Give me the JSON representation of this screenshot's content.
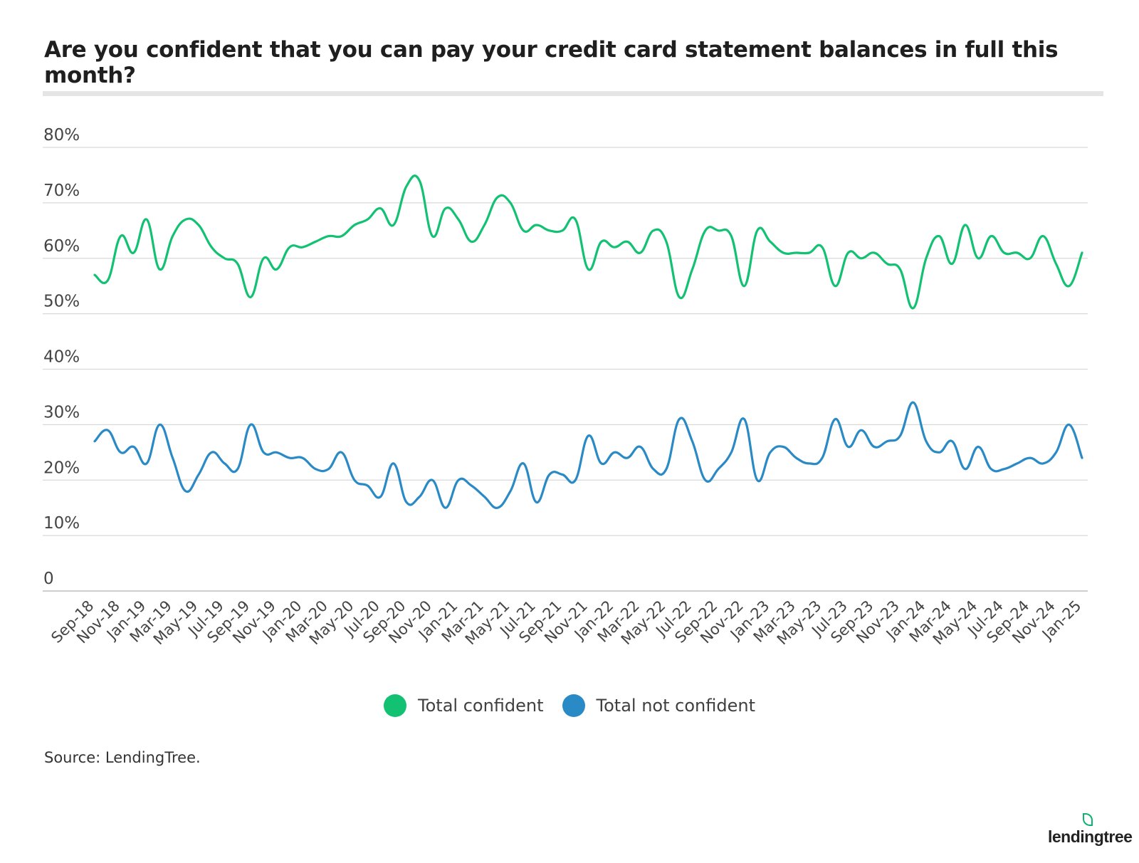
{
  "chart_data": {
    "type": "line",
    "title": "Are you confident that you can pay your credit card statement balances in full this month?",
    "x": [
      "Sep-18",
      "Oct-18",
      "Nov-18",
      "Dec-18",
      "Jan-19",
      "Feb-19",
      "Mar-19",
      "Apr-19",
      "May-19",
      "Jun-19",
      "Jul-19",
      "Aug-19",
      "Sep-19",
      "Oct-19",
      "Nov-19",
      "Dec-19",
      "Jan-20",
      "Feb-20",
      "Mar-20",
      "Apr-20",
      "May-20",
      "Jun-20",
      "Jul-20",
      "Aug-20",
      "Sep-20",
      "Oct-20",
      "Nov-20",
      "Dec-20",
      "Jan-21",
      "Feb-21",
      "Mar-21",
      "Apr-21",
      "May-21",
      "Jun-21",
      "Jul-21",
      "Aug-21",
      "Sep-21",
      "Oct-21",
      "Nov-21",
      "Dec-21",
      "Jan-22",
      "Feb-22",
      "Mar-22",
      "Apr-22",
      "May-22",
      "Jun-22",
      "Jul-22",
      "Aug-22",
      "Sep-22",
      "Oct-22",
      "Nov-22",
      "Dec-22",
      "Jan-23",
      "Feb-23",
      "Mar-23",
      "Apr-23",
      "May-23",
      "Jun-23",
      "Jul-23",
      "Aug-23",
      "Sep-23",
      "Oct-23",
      "Nov-23",
      "Dec-23",
      "Jan-24",
      "Feb-24",
      "Mar-24",
      "Apr-24",
      "May-24",
      "Jun-24",
      "Jul-24",
      "Aug-24",
      "Sep-24",
      "Oct-24",
      "Nov-24",
      "Dec-24",
      "Jan-25"
    ],
    "x_tick_labels": [
      "Sep-18",
      "Nov-18",
      "Jan-19",
      "Mar-19",
      "May-19",
      "Jul-19",
      "Sep-19",
      "Nov-19",
      "Jan-20",
      "Mar-20",
      "May-20",
      "Jul-20",
      "Sep-20",
      "Nov-20",
      "Jan-21",
      "Mar-21",
      "May-21",
      "Jul-21",
      "Sep-21",
      "Nov-21",
      "Jan-22",
      "Mar-22",
      "May-22",
      "Jul-22",
      "Sep-22",
      "Nov-22",
      "Jan-23",
      "Mar-23",
      "May-23",
      "Jul-23",
      "Sep-23",
      "Nov-23",
      "Jan-24",
      "Mar-24",
      "May-24",
      "Jul-24",
      "Sep-24",
      "Nov-24",
      "Jan-25"
    ],
    "series": [
      {
        "name": "Total confident",
        "color": "#12c172",
        "values": [
          57,
          56,
          64,
          61,
          67,
          58,
          64,
          67,
          66,
          62,
          60,
          59,
          53,
          60,
          58,
          62,
          62,
          63,
          64,
          64,
          66,
          67,
          69,
          66,
          73,
          74,
          64,
          69,
          67,
          63,
          66,
          71,
          70,
          65,
          66,
          65,
          65,
          67,
          58,
          63,
          62,
          63,
          61,
          65,
          63,
          53,
          58,
          65,
          65,
          64,
          55,
          65,
          63,
          61,
          61,
          61,
          62,
          55,
          61,
          60,
          61,
          59,
          58,
          51,
          60,
          64,
          59,
          66,
          60,
          64,
          61,
          61,
          60,
          64,
          59,
          55,
          61
        ]
      },
      {
        "name": "Total not confident",
        "color": "#2a8ac6",
        "values": [
          27,
          29,
          25,
          26,
          23,
          30,
          24,
          18,
          21,
          25,
          23,
          22,
          30,
          25,
          25,
          24,
          24,
          22,
          22,
          25,
          20,
          19,
          17,
          23,
          16,
          17,
          20,
          15,
          20,
          19,
          17,
          15,
          18,
          23,
          16,
          21,
          21,
          20,
          28,
          23,
          25,
          24,
          26,
          22,
          22,
          31,
          27,
          20,
          22,
          25,
          31,
          20,
          25,
          26,
          24,
          23,
          24,
          31,
          26,
          29,
          26,
          27,
          28,
          34,
          27,
          25,
          27,
          22,
          26,
          22,
          22,
          23,
          24,
          23,
          25,
          30,
          24
        ]
      }
    ],
    "y_ticks": [
      "0",
      "10%",
      "20%",
      "30%",
      "40%",
      "50%",
      "60%",
      "70%",
      "80%"
    ],
    "ylim": [
      0,
      80
    ],
    "grid": "horizontal",
    "legend_position": "bottom-center"
  },
  "source": "Source: LendingTree.",
  "logo_text": "lendingtree"
}
